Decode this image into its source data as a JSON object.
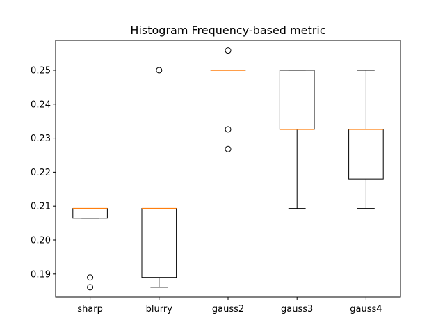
{
  "chart_data": {
    "type": "box",
    "title": "Histogram Frequency-based metric",
    "xlabel": "",
    "ylabel": "",
    "ylim": [
      0.1832,
      0.2588
    ],
    "yticks": [
      "0.19",
      "0.20",
      "0.21",
      "0.22",
      "0.23",
      "0.24",
      "0.25"
    ],
    "categories": [
      "sharp",
      "blurry",
      "gauss2",
      "gauss3",
      "gauss4"
    ],
    "boxes": [
      {
        "category": "sharp",
        "whisker_low": 0.2064,
        "q1": 0.2064,
        "median": 0.2093,
        "q3": 0.2093,
        "whisker_high": 0.2093,
        "outliers": [
          0.189,
          0.1861
        ]
      },
      {
        "category": "blurry",
        "whisker_low": 0.1861,
        "q1": 0.189,
        "median": 0.2093,
        "q3": 0.2093,
        "whisker_high": 0.2093,
        "outliers": [
          0.25
        ]
      },
      {
        "category": "gauss2",
        "whisker_low": 0.25,
        "q1": 0.25,
        "median": 0.25,
        "q3": 0.25,
        "whisker_high": 0.25,
        "outliers": [
          0.2558,
          0.2326,
          0.2268
        ]
      },
      {
        "category": "gauss3",
        "whisker_low": 0.2093,
        "q1": 0.2326,
        "median": 0.2326,
        "q3": 0.25,
        "whisker_high": 0.25,
        "outliers": []
      },
      {
        "category": "gauss4",
        "whisker_low": 0.2093,
        "q1": 0.218,
        "median": 0.2326,
        "q3": 0.2326,
        "whisker_high": 0.25,
        "outliers": []
      }
    ],
    "grid": false,
    "legend": "none",
    "colors": {
      "box": "#000000",
      "median": "#ff7f0e",
      "outlier": "#000000"
    }
  }
}
